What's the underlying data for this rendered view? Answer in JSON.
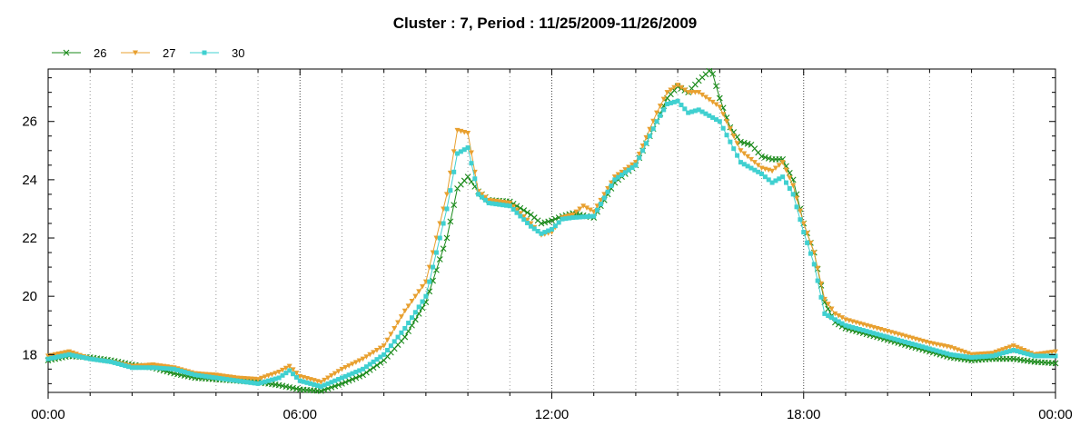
{
  "chart_data": {
    "type": "line",
    "title": "Cluster : 7, Period : 11/25/2009-11/26/2009",
    "xlabel": "",
    "ylabel": "",
    "xlim": [
      0,
      24
    ],
    "ylim": [
      16.7,
      27.8
    ],
    "x_ticks": [
      0,
      6,
      12,
      18,
      24
    ],
    "x_tick_labels": [
      "00:00",
      "06:00",
      "12:00",
      "18:00",
      "00:00"
    ],
    "y_ticks": [
      18,
      20,
      22,
      24,
      26
    ],
    "y_tick_labels": [
      "18",
      "20",
      "22",
      "24",
      "26"
    ],
    "grid": "vertical dotted",
    "legend": "top-left",
    "series": [
      {
        "name": "26",
        "color": "#1a8a1a",
        "marker": "x",
        "points": [
          [
            0,
            17.8
          ],
          [
            0.5,
            17.95
          ],
          [
            1,
            17.9
          ],
          [
            1.5,
            17.8
          ],
          [
            2,
            17.65
          ],
          [
            2.5,
            17.55
          ],
          [
            3,
            17.35
          ],
          [
            3.5,
            17.2
          ],
          [
            4,
            17.15
          ],
          [
            4.5,
            17.1
          ],
          [
            5,
            17.05
          ],
          [
            5.5,
            16.95
          ],
          [
            6,
            16.8
          ],
          [
            6.5,
            16.75
          ],
          [
            7,
            17.0
          ],
          [
            7.5,
            17.3
          ],
          [
            8,
            17.8
          ],
          [
            8.5,
            18.6
          ],
          [
            9,
            19.8
          ],
          [
            9.5,
            22.0
          ],
          [
            9.75,
            23.7
          ],
          [
            10,
            24.1
          ],
          [
            10.25,
            23.6
          ],
          [
            10.5,
            23.3
          ],
          [
            11,
            23.25
          ],
          [
            11.5,
            22.8
          ],
          [
            11.75,
            22.5
          ],
          [
            12,
            22.6
          ],
          [
            12.25,
            22.75
          ],
          [
            12.5,
            22.85
          ],
          [
            13,
            22.7
          ],
          [
            13.5,
            23.9
          ],
          [
            14,
            24.5
          ],
          [
            14.5,
            26.0
          ],
          [
            14.75,
            26.8
          ],
          [
            15,
            27.2
          ],
          [
            15.25,
            27.0
          ],
          [
            15.5,
            27.4
          ],
          [
            15.8,
            27.8
          ],
          [
            16,
            26.8
          ],
          [
            16.25,
            25.8
          ],
          [
            16.5,
            25.3
          ],
          [
            16.75,
            25.2
          ],
          [
            17,
            24.8
          ],
          [
            17.25,
            24.7
          ],
          [
            17.5,
            24.7
          ],
          [
            17.75,
            24.0
          ],
          [
            18,
            22.5
          ],
          [
            18.25,
            21.5
          ],
          [
            18.5,
            19.8
          ],
          [
            18.75,
            19.1
          ],
          [
            19,
            18.9
          ],
          [
            19.5,
            18.7
          ],
          [
            20,
            18.5
          ],
          [
            20.5,
            18.3
          ],
          [
            21,
            18.1
          ],
          [
            21.5,
            17.9
          ],
          [
            22,
            17.8
          ],
          [
            22.5,
            17.85
          ],
          [
            23,
            17.85
          ],
          [
            23.5,
            17.75
          ],
          [
            24,
            17.7
          ]
        ]
      },
      {
        "name": "27",
        "color": "#e8a030",
        "marker": "triangle-down",
        "points": [
          [
            0,
            17.95
          ],
          [
            0.5,
            18.1
          ],
          [
            1,
            17.85
          ],
          [
            1.5,
            17.75
          ],
          [
            2,
            17.6
          ],
          [
            2.5,
            17.65
          ],
          [
            3,
            17.55
          ],
          [
            3.5,
            17.35
          ],
          [
            4,
            17.3
          ],
          [
            4.5,
            17.2
          ],
          [
            5,
            17.15
          ],
          [
            5.5,
            17.4
          ],
          [
            5.75,
            17.6
          ],
          [
            6,
            17.25
          ],
          [
            6.5,
            17.05
          ],
          [
            7,
            17.5
          ],
          [
            7.5,
            17.85
          ],
          [
            8,
            18.3
          ],
          [
            8.5,
            19.5
          ],
          [
            9,
            20.5
          ],
          [
            9.5,
            23.5
          ],
          [
            9.75,
            25.7
          ],
          [
            10,
            25.6
          ],
          [
            10.25,
            23.6
          ],
          [
            10.5,
            23.3
          ],
          [
            11,
            23.2
          ],
          [
            11.5,
            22.5
          ],
          [
            11.75,
            22.1
          ],
          [
            12,
            22.2
          ],
          [
            12.25,
            22.7
          ],
          [
            12.5,
            22.8
          ],
          [
            12.75,
            23.1
          ],
          [
            13,
            22.9
          ],
          [
            13.5,
            24.1
          ],
          [
            14,
            24.6
          ],
          [
            14.5,
            26.3
          ],
          [
            14.75,
            27.0
          ],
          [
            15,
            27.25
          ],
          [
            15.25,
            27.0
          ],
          [
            15.5,
            27.0
          ],
          [
            16,
            26.5
          ],
          [
            16.5,
            25.0
          ],
          [
            17,
            24.4
          ],
          [
            17.25,
            24.3
          ],
          [
            17.5,
            24.6
          ],
          [
            17.75,
            23.8
          ],
          [
            18,
            22.5
          ],
          [
            18.25,
            21.5
          ],
          [
            18.5,
            19.9
          ],
          [
            18.75,
            19.4
          ],
          [
            19,
            19.2
          ],
          [
            19.5,
            19.0
          ],
          [
            20,
            18.8
          ],
          [
            20.5,
            18.6
          ],
          [
            21,
            18.4
          ],
          [
            21.5,
            18.25
          ],
          [
            22,
            18.0
          ],
          [
            22.5,
            18.05
          ],
          [
            23,
            18.3
          ],
          [
            23.5,
            18.0
          ],
          [
            24,
            18.1
          ]
        ]
      },
      {
        "name": "30",
        "color": "#40d0d0",
        "marker": "square",
        "points": [
          [
            0,
            17.85
          ],
          [
            0.5,
            18.0
          ],
          [
            1,
            17.85
          ],
          [
            1.5,
            17.75
          ],
          [
            2,
            17.55
          ],
          [
            2.5,
            17.55
          ],
          [
            3,
            17.5
          ],
          [
            3.5,
            17.3
          ],
          [
            4,
            17.2
          ],
          [
            4.5,
            17.1
          ],
          [
            5,
            17.0
          ],
          [
            5.5,
            17.2
          ],
          [
            5.75,
            17.45
          ],
          [
            6,
            17.1
          ],
          [
            6.5,
            16.9
          ],
          [
            7,
            17.2
          ],
          [
            7.5,
            17.5
          ],
          [
            8,
            18.0
          ],
          [
            8.5,
            18.9
          ],
          [
            9,
            20.0
          ],
          [
            9.5,
            23.0
          ],
          [
            9.75,
            24.9
          ],
          [
            10,
            25.1
          ],
          [
            10.25,
            23.5
          ],
          [
            10.5,
            23.2
          ],
          [
            11,
            23.1
          ],
          [
            11.5,
            22.4
          ],
          [
            11.75,
            22.15
          ],
          [
            12,
            22.3
          ],
          [
            12.25,
            22.65
          ],
          [
            12.5,
            22.7
          ],
          [
            13,
            22.75
          ],
          [
            13.5,
            24.0
          ],
          [
            14,
            24.5
          ],
          [
            14.5,
            26.0
          ],
          [
            14.75,
            26.6
          ],
          [
            15,
            26.7
          ],
          [
            15.25,
            26.3
          ],
          [
            15.5,
            26.4
          ],
          [
            16,
            26.0
          ],
          [
            16.5,
            24.6
          ],
          [
            17,
            24.2
          ],
          [
            17.25,
            23.9
          ],
          [
            17.5,
            24.1
          ],
          [
            17.75,
            23.5
          ],
          [
            18,
            22.2
          ],
          [
            18.25,
            21.1
          ],
          [
            18.5,
            19.4
          ],
          [
            18.75,
            19.2
          ],
          [
            19,
            19.0
          ],
          [
            19.5,
            18.8
          ],
          [
            20,
            18.6
          ],
          [
            20.5,
            18.4
          ],
          [
            21,
            18.2
          ],
          [
            21.5,
            18.0
          ],
          [
            22,
            17.9
          ],
          [
            22.5,
            17.95
          ],
          [
            23,
            18.15
          ],
          [
            23.5,
            17.95
          ],
          [
            24,
            17.95
          ]
        ]
      }
    ]
  }
}
